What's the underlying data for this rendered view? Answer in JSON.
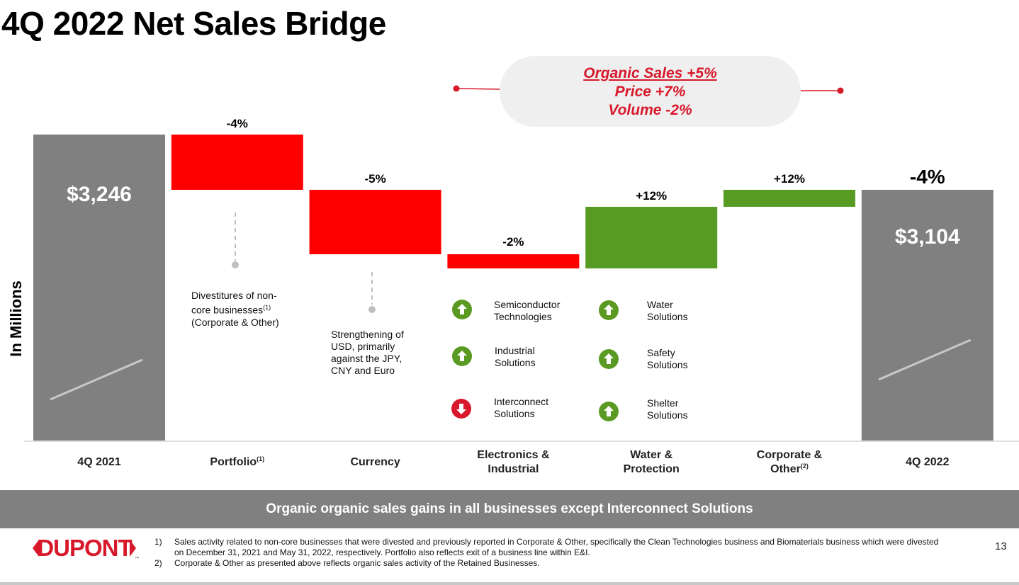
{
  "title": "4Q 2022 Net Sales Bridge",
  "organic": {
    "line1": "Organic Sales +5%",
    "line2": "Price +7%",
    "line3": "Volume -2%"
  },
  "chart_data": {
    "type": "bar",
    "subtype": "waterfall",
    "ylabel": "In Millions",
    "categories": [
      "4Q 2021",
      "Portfolio(1)",
      "Currency",
      "Electronics & Industrial",
      "Water & Protection",
      "Corporate & Other(2)",
      "4Q 2022"
    ],
    "bars": [
      {
        "label": "4Q 2021",
        "kind": "total",
        "value": 3246,
        "value_label": "$3,246",
        "pct_label": ""
      },
      {
        "label": "Portfolio",
        "sup": "(1)",
        "kind": "delta",
        "pct_label": "-4%",
        "direction": "negative"
      },
      {
        "label": "Currency",
        "sup": "",
        "kind": "delta",
        "pct_label": "-5%",
        "direction": "negative"
      },
      {
        "label": "Electronics & Industrial",
        "sup": "",
        "kind": "delta",
        "pct_label": "-2%",
        "direction": "negative"
      },
      {
        "label": "Water & Protection",
        "sup": "",
        "kind": "delta",
        "pct_label": "+12%",
        "direction": "positive"
      },
      {
        "label": "Corporate & Other",
        "sup": "(2)",
        "kind": "delta",
        "pct_label": "+12%",
        "direction": "positive"
      },
      {
        "label": "4Q 2022",
        "kind": "total",
        "value": 3104,
        "value_label": "$3,104",
        "pct_label": "-4%"
      }
    ],
    "colors": {
      "total": "#808080",
      "negative": "#ff0000",
      "positive": "#589b22"
    }
  },
  "notes": {
    "portfolio": [
      "Divestitures of non-",
      "core businesses",
      "(1)",
      "(Corporate & Other)"
    ],
    "currency": [
      "Strengthening of",
      "USD, primarily",
      "against the JPY,",
      "CNY and Euro"
    ]
  },
  "drivers": {
    "ei": [
      {
        "label": [
          "Semiconductor",
          "Technologies"
        ],
        "dir": "up",
        "icon": "arrow-up-icon"
      },
      {
        "label": [
          "Industrial",
          "Solutions"
        ],
        "dir": "up",
        "icon": "arrow-up-icon"
      },
      {
        "label": [
          "Interconnect",
          "Solutions"
        ],
        "dir": "down",
        "icon": "arrow-down-icon"
      }
    ],
    "wp": [
      {
        "label": [
          "Water",
          "Solutions"
        ],
        "dir": "up",
        "icon": "arrow-up-icon"
      },
      {
        "label": [
          "Safety",
          "Solutions"
        ],
        "dir": "up",
        "icon": "arrow-up-icon"
      },
      {
        "label": [
          "Shelter",
          "Solutions"
        ],
        "dir": "up",
        "icon": "arrow-up-icon"
      }
    ]
  },
  "banner": "Organic organic sales gains in all businesses except Interconnect Solutions",
  "logo_text": "DUPONT",
  "logo_tm": "™",
  "footnotes": [
    {
      "num": "1)",
      "text": "Sales activity related to non-core businesses that were divested and previously reported in Corporate & Other, specifically the Clean Technologies business and Biomaterials business which were divested on December 31, 2021 and May 31, 2022, respectively. Portfolio also reflects exit of a business line within E&I."
    },
    {
      "num": "2)",
      "text": "Corporate & Other as presented above reflects organic sales activity of the Retained Businesses."
    }
  ],
  "page_number": "13"
}
